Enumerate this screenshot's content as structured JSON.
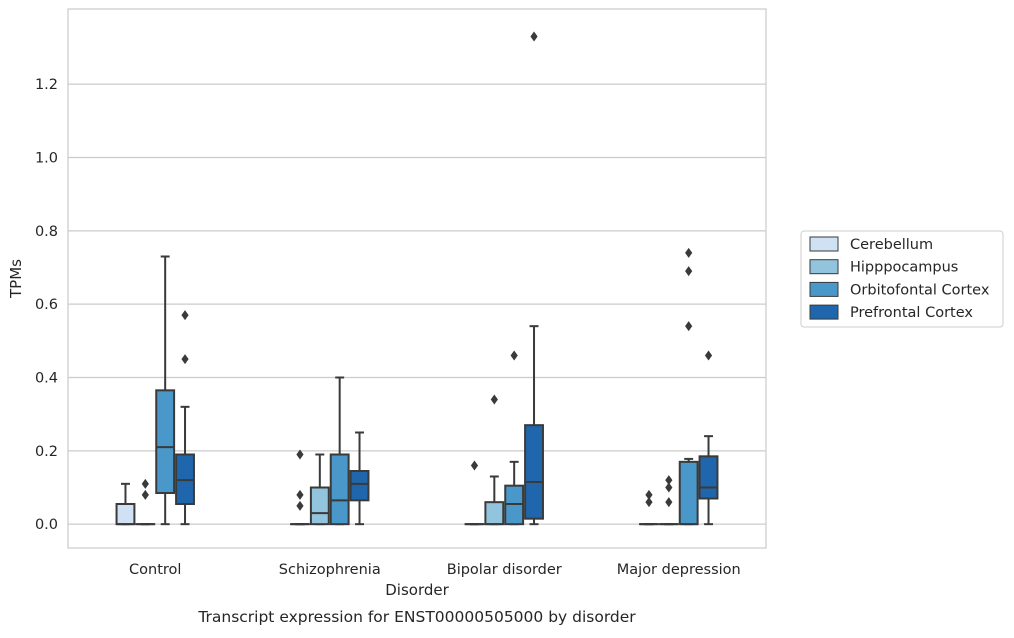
{
  "chart_data": {
    "type": "box",
    "xlabel": "Disorder",
    "ylabel": "TPMs",
    "caption": "Transcript expression for ENST00000505000 by disorder",
    "ylim": [
      -0.065,
      1.405
    ],
    "yticks": [
      0.0,
      0.2,
      0.4,
      0.6,
      0.8,
      1.0,
      1.2
    ],
    "ytick_labels": [
      "0.0",
      "0.2",
      "0.4",
      "0.6",
      "0.8",
      "1.0",
      "1.2"
    ],
    "grid": "horizontal",
    "legend_position": "right",
    "categories": [
      "Control",
      "Schizophrenia",
      "Bipolar disorder",
      "Major depression"
    ],
    "series": [
      {
        "name": "Cerebellum",
        "color": "#cfe1f2",
        "boxes": [
          {
            "q1": 0.0,
            "median": 0.0,
            "q3": 0.055,
            "whisker_low": 0.0,
            "whisker_high": 0.11,
            "outliers": []
          },
          {
            "q1": 0.0,
            "median": 0.0,
            "q3": 0.0,
            "whisker_low": 0.0,
            "whisker_high": 0.0,
            "outliers": [
              0.19,
              0.08,
              0.05
            ]
          },
          {
            "q1": 0.0,
            "median": 0.0,
            "q3": 0.0,
            "whisker_low": 0.0,
            "whisker_high": 0.0,
            "outliers": [
              0.16
            ]
          },
          {
            "q1": 0.0,
            "median": 0.0,
            "q3": 0.0,
            "whisker_low": 0.0,
            "whisker_high": 0.0,
            "outliers": [
              0.08,
              0.06
            ]
          }
        ]
      },
      {
        "name": "Hipppocampus",
        "color": "#93c4de",
        "boxes": [
          {
            "q1": 0.0,
            "median": 0.0,
            "q3": 0.0,
            "whisker_low": 0.0,
            "whisker_high": 0.0,
            "outliers": [
              0.11,
              0.08
            ]
          },
          {
            "q1": 0.0,
            "median": 0.03,
            "q3": 0.1,
            "whisker_low": 0.0,
            "whisker_high": 0.19,
            "outliers": []
          },
          {
            "q1": 0.0,
            "median": 0.0,
            "q3": 0.06,
            "whisker_low": 0.0,
            "whisker_high": 0.13,
            "outliers": [
              0.34
            ]
          },
          {
            "q1": 0.0,
            "median": 0.0,
            "q3": 0.0,
            "whisker_low": 0.0,
            "whisker_high": 0.0,
            "outliers": [
              0.12,
              0.1,
              0.06
            ]
          }
        ]
      },
      {
        "name": "Orbitofontal Cortex",
        "color": "#4a98c9",
        "boxes": [
          {
            "q1": 0.085,
            "median": 0.21,
            "q3": 0.365,
            "whisker_low": 0.0,
            "whisker_high": 0.73,
            "outliers": []
          },
          {
            "q1": 0.0,
            "median": 0.065,
            "q3": 0.19,
            "whisker_low": 0.0,
            "whisker_high": 0.4,
            "outliers": []
          },
          {
            "q1": 0.0,
            "median": 0.055,
            "q3": 0.105,
            "whisker_low": 0.0,
            "whisker_high": 0.17,
            "outliers": [
              0.46
            ]
          },
          {
            "q1": 0.0,
            "median": 0.0,
            "q3": 0.17,
            "whisker_low": 0.0,
            "whisker_high": 0.178,
            "outliers": [
              0.74,
              0.69,
              0.54
            ]
          }
        ]
      },
      {
        "name": "Prefrontal Cortex",
        "color": "#2066ac",
        "boxes": [
          {
            "q1": 0.055,
            "median": 0.12,
            "q3": 0.19,
            "whisker_low": 0.0,
            "whisker_high": 0.32,
            "outliers": [
              0.57,
              0.45
            ]
          },
          {
            "q1": 0.065,
            "median": 0.11,
            "q3": 0.145,
            "whisker_low": 0.0,
            "whisker_high": 0.25,
            "outliers": []
          },
          {
            "q1": 0.015,
            "median": 0.115,
            "q3": 0.27,
            "whisker_low": 0.0,
            "whisker_high": 0.54,
            "outliers": [
              1.33
            ]
          },
          {
            "q1": 0.07,
            "median": 0.1,
            "q3": 0.185,
            "whisker_low": 0.0,
            "whisker_high": 0.24,
            "outliers": [
              0.46
            ]
          }
        ]
      }
    ]
  }
}
